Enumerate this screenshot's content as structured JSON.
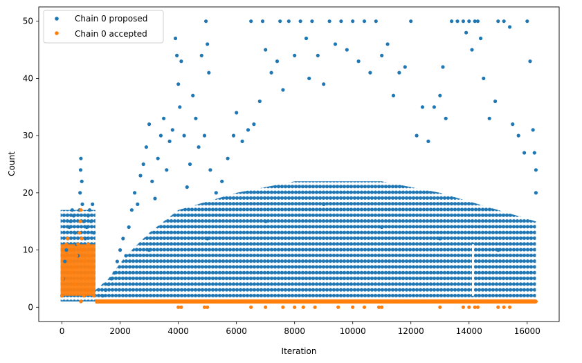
{
  "chart_data": {
    "type": "scatter",
    "xlabel": "Iteration",
    "ylabel": "Count",
    "xlim": [
      -800,
      17100
    ],
    "ylim": [
      -2.5,
      52.5
    ],
    "xticks": [
      0,
      2000,
      4000,
      6000,
      8000,
      10000,
      12000,
      14000,
      16000
    ],
    "yticks": [
      0,
      10,
      20,
      30,
      40,
      50
    ],
    "legend_position": "top-left",
    "marker": "filled circle, small",
    "note": "Dense scatter of tens of thousands of integer-valued points; individual values are not labeled. Series below are a representative sample read off the axes.",
    "series": [
      {
        "name": "Chain 0 proposed",
        "color": "#1f77b4",
        "points": [
          [
            0,
            2
          ],
          [
            50,
            5
          ],
          [
            100,
            8
          ],
          [
            150,
            10
          ],
          [
            200,
            12
          ],
          [
            250,
            14
          ],
          [
            300,
            15
          ],
          [
            350,
            17
          ],
          [
            400,
            16
          ],
          [
            450,
            13
          ],
          [
            500,
            11
          ],
          [
            550,
            9
          ],
          [
            600,
            17
          ],
          [
            620,
            20
          ],
          [
            640,
            24
          ],
          [
            650,
            26
          ],
          [
            680,
            22
          ],
          [
            700,
            18
          ],
          [
            750,
            15
          ],
          [
            800,
            12
          ],
          [
            850,
            14
          ],
          [
            900,
            16
          ],
          [
            950,
            17
          ],
          [
            1000,
            15
          ],
          [
            1050,
            18
          ],
          [
            1100,
            13
          ],
          [
            1200,
            1
          ],
          [
            1400,
            2
          ],
          [
            1500,
            3
          ],
          [
            1600,
            4
          ],
          [
            1700,
            5
          ],
          [
            1800,
            6
          ],
          [
            1900,
            8
          ],
          [
            2000,
            10
          ],
          [
            2100,
            12
          ],
          [
            2200,
            9
          ],
          [
            2300,
            14
          ],
          [
            2400,
            17
          ],
          [
            2500,
            20
          ],
          [
            2600,
            18
          ],
          [
            2700,
            23
          ],
          [
            2800,
            25
          ],
          [
            2900,
            28
          ],
          [
            3000,
            32
          ],
          [
            3100,
            22
          ],
          [
            3200,
            19
          ],
          [
            3300,
            26
          ],
          [
            3400,
            30
          ],
          [
            3500,
            33
          ],
          [
            3600,
            24
          ],
          [
            3700,
            29
          ],
          [
            3800,
            31
          ],
          [
            3900,
            47
          ],
          [
            3950,
            44
          ],
          [
            4000,
            39
          ],
          [
            4050,
            35
          ],
          [
            4100,
            43
          ],
          [
            4200,
            30
          ],
          [
            4300,
            21
          ],
          [
            4400,
            25
          ],
          [
            4500,
            37
          ],
          [
            4600,
            33
          ],
          [
            4700,
            28
          ],
          [
            4800,
            44
          ],
          [
            4900,
            30
          ],
          [
            4950,
            50
          ],
          [
            5000,
            46
          ],
          [
            5050,
            41
          ],
          [
            5100,
            24
          ],
          [
            5300,
            20
          ],
          [
            5500,
            22
          ],
          [
            5700,
            26
          ],
          [
            5900,
            30
          ],
          [
            6000,
            34
          ],
          [
            6200,
            29
          ],
          [
            6400,
            31
          ],
          [
            6500,
            50
          ],
          [
            6600,
            32
          ],
          [
            6800,
            36
          ],
          [
            6900,
            50
          ],
          [
            7000,
            45
          ],
          [
            7200,
            41
          ],
          [
            7400,
            43
          ],
          [
            7500,
            50
          ],
          [
            7600,
            38
          ],
          [
            7800,
            50
          ],
          [
            8000,
            44
          ],
          [
            8200,
            50
          ],
          [
            8400,
            47
          ],
          [
            8500,
            40
          ],
          [
            8600,
            50
          ],
          [
            8800,
            44
          ],
          [
            9000,
            39
          ],
          [
            9200,
            50
          ],
          [
            9400,
            46
          ],
          [
            9600,
            50
          ],
          [
            9800,
            45
          ],
          [
            10000,
            50
          ],
          [
            10200,
            43
          ],
          [
            10400,
            50
          ],
          [
            10600,
            41
          ],
          [
            10800,
            50
          ],
          [
            11000,
            44
          ],
          [
            11200,
            46
          ],
          [
            11400,
            37
          ],
          [
            11600,
            41
          ],
          [
            11800,
            42
          ],
          [
            12000,
            50
          ],
          [
            12200,
            30
          ],
          [
            12400,
            35
          ],
          [
            12600,
            29
          ],
          [
            12800,
            35
          ],
          [
            13000,
            37
          ],
          [
            13100,
            42
          ],
          [
            13200,
            33
          ],
          [
            13400,
            50
          ],
          [
            13600,
            50
          ],
          [
            13800,
            50
          ],
          [
            13900,
            48
          ],
          [
            14000,
            50
          ],
          [
            14100,
            45
          ],
          [
            14200,
            50
          ],
          [
            14300,
            50
          ],
          [
            14400,
            47
          ],
          [
            14500,
            40
          ],
          [
            14700,
            33
          ],
          [
            14900,
            36
          ],
          [
            15000,
            50
          ],
          [
            15200,
            50
          ],
          [
            15400,
            49
          ],
          [
            15500,
            32
          ],
          [
            15700,
            30
          ],
          [
            15900,
            27
          ],
          [
            16000,
            50
          ],
          [
            16100,
            43
          ],
          [
            16200,
            31
          ],
          [
            16300,
            24
          ],
          [
            16300,
            20
          ],
          [
            16250,
            27
          ],
          [
            3000,
            10
          ],
          [
            5000,
            12
          ],
          [
            7000,
            15
          ],
          [
            9000,
            18
          ],
          [
            11000,
            14
          ],
          [
            13000,
            12
          ],
          [
            15000,
            10
          ]
        ]
      },
      {
        "name": "Chain 0 accepted",
        "color": "#ff7f0e",
        "points": [
          [
            0,
            2
          ],
          [
            30,
            5
          ],
          [
            60,
            7
          ],
          [
            100,
            9
          ],
          [
            150,
            11
          ],
          [
            200,
            12
          ],
          [
            250,
            8
          ],
          [
            300,
            6
          ],
          [
            350,
            10
          ],
          [
            400,
            7
          ],
          [
            450,
            4
          ],
          [
            500,
            9
          ],
          [
            550,
            11
          ],
          [
            600,
            13
          ],
          [
            630,
            15
          ],
          [
            650,
            17
          ],
          [
            680,
            12
          ],
          [
            700,
            10
          ],
          [
            750,
            8
          ],
          [
            800,
            5
          ],
          [
            850,
            3
          ],
          [
            900,
            11
          ],
          [
            950,
            9
          ],
          [
            1000,
            7
          ],
          [
            1050,
            4
          ],
          [
            1100,
            2
          ],
          [
            650,
            1
          ],
          [
            750,
            2
          ],
          [
            1200,
            1
          ],
          [
            2000,
            1
          ],
          [
            3000,
            1
          ],
          [
            4000,
            0
          ],
          [
            4100,
            0
          ],
          [
            4900,
            0
          ],
          [
            5000,
            0
          ],
          [
            6000,
            1
          ],
          [
            6500,
            0
          ],
          [
            7000,
            0
          ],
          [
            7600,
            0
          ],
          [
            8000,
            0
          ],
          [
            8300,
            0
          ],
          [
            8700,
            0
          ],
          [
            9000,
            1
          ],
          [
            9500,
            0
          ],
          [
            10000,
            0
          ],
          [
            10400,
            0
          ],
          [
            10900,
            0
          ],
          [
            11000,
            0
          ],
          [
            12000,
            1
          ],
          [
            13000,
            0
          ],
          [
            13800,
            0
          ],
          [
            14000,
            0
          ],
          [
            14200,
            0
          ],
          [
            14300,
            0
          ],
          [
            15000,
            0
          ],
          [
            15200,
            0
          ],
          [
            15400,
            0
          ],
          [
            16000,
            1
          ],
          [
            16300,
            1
          ]
        ]
      }
    ]
  }
}
